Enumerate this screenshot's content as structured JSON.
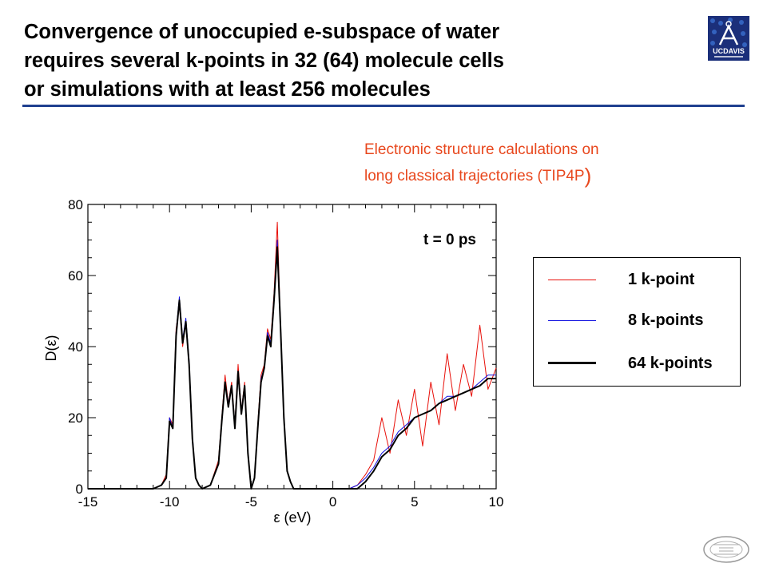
{
  "slide": {
    "title_lines": [
      "Convergence of unoccupied e-subspace of water",
      "requires several k-points in 32 (64) molecule cells",
      "or simulations with at least 256 molecules"
    ],
    "subtitle_lines": [
      "Electronic structure calculations on",
      "long classical trajectories (TIP4P"
    ],
    "subtitle_close": ")",
    "logo_text": "UCDAVIS",
    "colors": {
      "title": "#000000",
      "rule": "#1f3f8f",
      "subtitle": "#e8471d",
      "logo_bg": "#1b2f7a"
    }
  },
  "chart_data": {
    "type": "line",
    "title": "",
    "annotation": "t = 0 ps",
    "xlabel": "ε (eV)",
    "ylabel": "D(ε)",
    "xlim": [
      -15,
      10
    ],
    "ylim": [
      0,
      80
    ],
    "x_ticks": [
      "-15",
      "-10",
      "-5",
      "0",
      "5",
      "10"
    ],
    "y_ticks": [
      "0",
      "20",
      "40",
      "60",
      "80"
    ],
    "grid": false,
    "legend_position": "right, outside plot",
    "x": [
      -15,
      -13,
      -11,
      -10.5,
      -10.2,
      -10.0,
      -9.8,
      -9.6,
      -9.4,
      -9.2,
      -9.0,
      -8.8,
      -8.6,
      -8.4,
      -8.2,
      -8.0,
      -7.5,
      -7.0,
      -6.8,
      -6.6,
      -6.4,
      -6.2,
      -6.0,
      -5.8,
      -5.6,
      -5.4,
      -5.2,
      -5.0,
      -4.8,
      -4.6,
      -4.4,
      -4.2,
      -4.0,
      -3.8,
      -3.6,
      -3.4,
      -3.2,
      -3.0,
      -2.8,
      -2.6,
      -2.4,
      -2.2,
      -2.0,
      -1.5,
      -1.0,
      0.0,
      1.0,
      1.5,
      2.0,
      2.5,
      3.0,
      3.5,
      4.0,
      4.5,
      5.0,
      5.5,
      6.0,
      6.5,
      7.0,
      7.5,
      8.0,
      8.5,
      9.0,
      9.5,
      10.0
    ],
    "series": [
      {
        "name": "1 k-point",
        "color": "#e8100a",
        "values": [
          0,
          0,
          0,
          1,
          4,
          20,
          18,
          45,
          52,
          40,
          47,
          35,
          14,
          3,
          1,
          0,
          1,
          8,
          20,
          32,
          24,
          30,
          18,
          35,
          22,
          30,
          10,
          0,
          3,
          18,
          32,
          35,
          45,
          42,
          55,
          75,
          45,
          20,
          5,
          2,
          0,
          0,
          0,
          0,
          0,
          0,
          0,
          1,
          4,
          8,
          20,
          10,
          25,
          15,
          28,
          12,
          30,
          18,
          38,
          22,
          35,
          26,
          46,
          28,
          34
        ]
      },
      {
        "name": "8 k-points",
        "color": "#1010e0",
        "values": [
          0,
          0,
          0,
          1,
          3,
          20,
          17,
          44,
          54,
          42,
          48,
          36,
          15,
          3,
          1,
          0,
          1,
          7,
          19,
          30,
          24,
          29,
          18,
          33,
          22,
          29,
          10,
          0,
          3,
          17,
          31,
          34,
          44,
          41,
          54,
          70,
          46,
          21,
          5,
          2,
          0,
          0,
          0,
          0,
          0,
          0,
          0,
          1,
          3,
          6,
          10,
          12,
          16,
          18,
          20,
          21,
          22,
          24,
          26,
          26,
          27,
          28,
          30,
          32,
          32
        ]
      },
      {
        "name": "64 k-points",
        "color": "#000000",
        "values": [
          0,
          0,
          0,
          1,
          3,
          19,
          17,
          43,
          53,
          41,
          47,
          35,
          14,
          3,
          1,
          0,
          1,
          7,
          19,
          30,
          23,
          29,
          17,
          33,
          21,
          29,
          10,
          0,
          3,
          17,
          30,
          34,
          43,
          40,
          53,
          68,
          45,
          20,
          5,
          2,
          0,
          0,
          0,
          0,
          0,
          0,
          0,
          0,
          2,
          5,
          9,
          11,
          15,
          17,
          20,
          21,
          22,
          24,
          25,
          26,
          27,
          28,
          29,
          31,
          31
        ]
      }
    ]
  }
}
